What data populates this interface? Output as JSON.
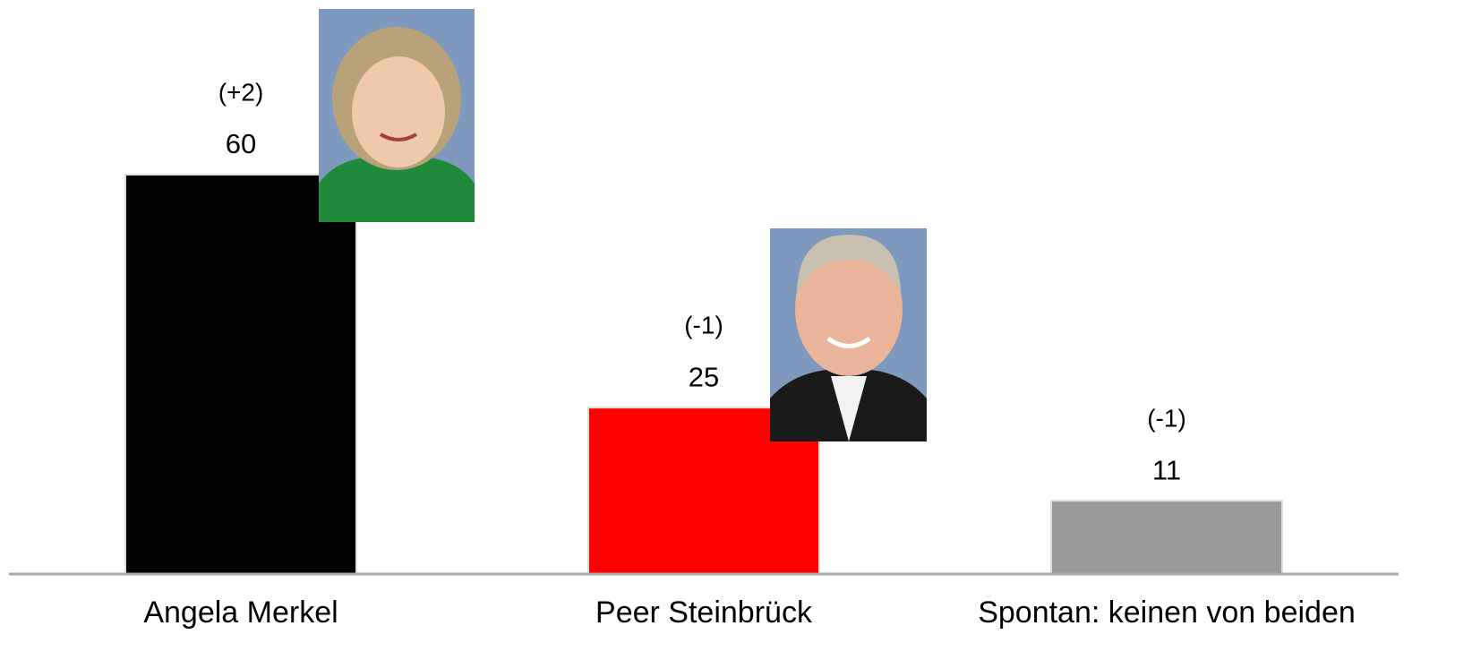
{
  "chart_data": {
    "type": "bar",
    "categories": [
      "Angela Merkel",
      "Peer Steinbrück",
      "Spontan: keinen von beiden"
    ],
    "values": [
      60,
      25,
      11
    ],
    "changes": [
      "(+2)",
      "(-1)",
      "(-1)"
    ],
    "colors": [
      "#000000",
      "#ff0000",
      "#999999"
    ]
  }
}
